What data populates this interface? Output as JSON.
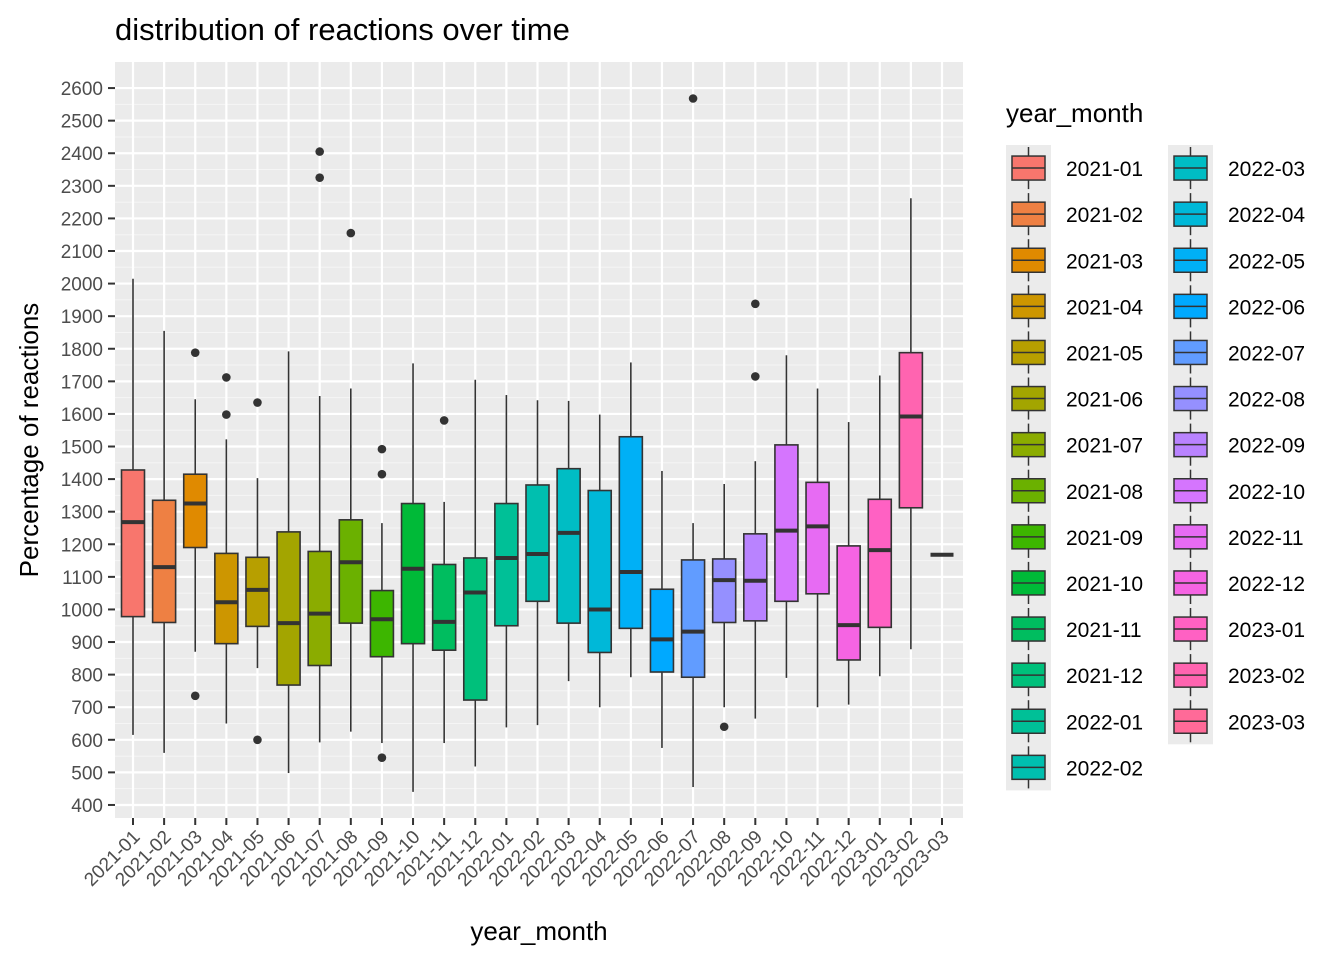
{
  "chart_data": {
    "type": "boxplot",
    "title": "distribution of reactions over time",
    "xlabel": "year_month",
    "ylabel": "Percentage of reactions",
    "ylim": [
      360,
      2680
    ],
    "yticks": [
      400,
      500,
      600,
      700,
      800,
      900,
      1000,
      1100,
      1200,
      1300,
      1400,
      1500,
      1600,
      1700,
      1800,
      1900,
      2000,
      2100,
      2200,
      2300,
      2400,
      2500,
      2600
    ],
    "grid": true,
    "legend_title": "year_month",
    "legend_position": "right",
    "categories": [
      "2021-01",
      "2021-02",
      "2021-03",
      "2021-04",
      "2021-05",
      "2021-06",
      "2021-07",
      "2021-08",
      "2021-09",
      "2021-10",
      "2021-11",
      "2021-12",
      "2022-01",
      "2022-02",
      "2022-03",
      "2022-04",
      "2022-05",
      "2022-06",
      "2022-07",
      "2022-08",
      "2022-09",
      "2022-10",
      "2022-11",
      "2022-12",
      "2023-01",
      "2023-02",
      "2023-03"
    ],
    "colors": [
      "#F8766D",
      "#EE8043",
      "#E08A00",
      "#CD9600",
      "#B79F00",
      "#A3A500",
      "#8BAC00",
      "#6BB100",
      "#3DB600",
      "#00BA38",
      "#00BD5F",
      "#00C07B",
      "#00C097",
      "#00BFAF",
      "#00BDC4",
      "#00B8D8",
      "#00B0F6",
      "#00A9FF",
      "#619CFF",
      "#9590FF",
      "#B983FF",
      "#D575FE",
      "#E76BF3",
      "#F564E3",
      "#FF61C3",
      "#FF64B0",
      "#FF6A98"
    ],
    "boxes": [
      {
        "min": 615,
        "q1": 978,
        "median": 1268,
        "q3": 1428,
        "max": 2015,
        "outliers": []
      },
      {
        "min": 560,
        "q1": 960,
        "median": 1130,
        "q3": 1335,
        "max": 1855,
        "outliers": []
      },
      {
        "min": 870,
        "q1": 1190,
        "median": 1325,
        "q3": 1415,
        "max": 1645,
        "outliers": [
          1788,
          735
        ]
      },
      {
        "min": 650,
        "q1": 895,
        "median": 1022,
        "q3": 1172,
        "max": 1522,
        "outliers": [
          1712,
          1598
        ]
      },
      {
        "min": 820,
        "q1": 948,
        "median": 1060,
        "q3": 1160,
        "max": 1403,
        "outliers": [
          1635,
          600
        ]
      },
      {
        "min": 498,
        "q1": 768,
        "median": 958,
        "q3": 1238,
        "max": 1792,
        "outliers": []
      },
      {
        "min": 592,
        "q1": 828,
        "median": 987,
        "q3": 1178,
        "max": 1655,
        "outliers": [
          2405,
          2325
        ]
      },
      {
        "min": 625,
        "q1": 958,
        "median": 1145,
        "q3": 1275,
        "max": 1678,
        "outliers": [
          2155
        ]
      },
      {
        "min": 590,
        "q1": 855,
        "median": 970,
        "q3": 1058,
        "max": 1265,
        "outliers": [
          1492,
          1415,
          545
        ]
      },
      {
        "min": 440,
        "q1": 895,
        "median": 1125,
        "q3": 1325,
        "max": 1755,
        "outliers": []
      },
      {
        "min": 590,
        "q1": 875,
        "median": 962,
        "q3": 1138,
        "max": 1330,
        "outliers": [
          1580
        ]
      },
      {
        "min": 518,
        "q1": 722,
        "median": 1052,
        "q3": 1158,
        "max": 1705,
        "outliers": []
      },
      {
        "min": 638,
        "q1": 950,
        "median": 1158,
        "q3": 1325,
        "max": 1658,
        "outliers": []
      },
      {
        "min": 645,
        "q1": 1025,
        "median": 1170,
        "q3": 1382,
        "max": 1642,
        "outliers": []
      },
      {
        "min": 780,
        "q1": 958,
        "median": 1235,
        "q3": 1432,
        "max": 1640,
        "outliers": []
      },
      {
        "min": 700,
        "q1": 868,
        "median": 1000,
        "q3": 1365,
        "max": 1598,
        "outliers": []
      },
      {
        "min": 792,
        "q1": 942,
        "median": 1115,
        "q3": 1530,
        "max": 1758,
        "outliers": []
      },
      {
        "min": 575,
        "q1": 808,
        "median": 908,
        "q3": 1062,
        "max": 1425,
        "outliers": []
      },
      {
        "min": 455,
        "q1": 792,
        "median": 932,
        "q3": 1152,
        "max": 1265,
        "outliers": [
          2568
        ]
      },
      {
        "min": 700,
        "q1": 960,
        "median": 1090,
        "q3": 1155,
        "max": 1385,
        "outliers": [
          640
        ]
      },
      {
        "min": 665,
        "q1": 965,
        "median": 1088,
        "q3": 1232,
        "max": 1455,
        "outliers": [
          1938,
          1715
        ]
      },
      {
        "min": 790,
        "q1": 1025,
        "median": 1242,
        "q3": 1505,
        "max": 1780,
        "outliers": []
      },
      {
        "min": 700,
        "q1": 1048,
        "median": 1255,
        "q3": 1390,
        "max": 1678,
        "outliers": []
      },
      {
        "min": 708,
        "q1": 845,
        "median": 952,
        "q3": 1195,
        "max": 1575,
        "outliers": []
      },
      {
        "min": 795,
        "q1": 945,
        "median": 1182,
        "q3": 1338,
        "max": 1718,
        "outliers": []
      },
      {
        "min": 878,
        "q1": 1312,
        "median": 1592,
        "q3": 1788,
        "max": 2262,
        "outliers": []
      },
      {
        "min": 1168,
        "q1": 1168,
        "median": 1168,
        "q3": 1168,
        "max": 1168,
        "outliers": []
      }
    ]
  }
}
